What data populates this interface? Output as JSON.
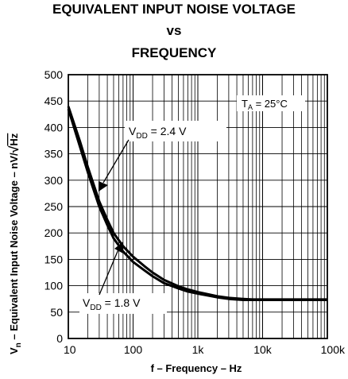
{
  "chart_data": {
    "type": "line",
    "title_lines": [
      "EQUIVALENT INPUT NOISE VOLTAGE",
      "vs",
      "FREQUENCY"
    ],
    "xlabel": "f – Frequency – Hz",
    "ylabel_parts": {
      "v": "V",
      "n": "n",
      "text": " – Equivalent Input Noise Voltage – nV/",
      "root": "Hz"
    },
    "x_scale": "log",
    "xlim": [
      10,
      100000
    ],
    "ylim": [
      0,
      500
    ],
    "x_ticks": [
      {
        "value": 10,
        "label": "10"
      },
      {
        "value": 100,
        "label": "100"
      },
      {
        "value": 1000,
        "label": "1k"
      },
      {
        "value": 10000,
        "label": "10k"
      },
      {
        "value": 100000,
        "label": "100k"
      }
    ],
    "y_ticks": [
      0,
      50,
      100,
      150,
      200,
      250,
      300,
      350,
      400,
      450,
      500
    ],
    "grid": true,
    "annotation": {
      "T": "T",
      "sub": "A",
      "rest": " = 25°C"
    },
    "series": [
      {
        "name_parts": {
          "V": "V",
          "sub": "DD",
          "rest": " = 2.4 V"
        },
        "x": [
          10,
          15,
          20,
          30,
          40,
          50,
          70,
          100,
          150,
          200,
          300,
          500,
          700,
          1000,
          2000,
          3000,
          5000,
          7000,
          10000,
          20000,
          50000,
          100000
        ],
        "y": [
          440,
          375,
          325,
          260,
          225,
          200,
          175,
          155,
          137,
          125,
          111,
          99,
          93,
          88,
          80,
          77,
          75,
          74,
          74,
          74,
          74,
          74
        ]
      },
      {
        "name_parts": {
          "V": "V",
          "sub": "DD",
          "rest": " = 1.8 V"
        },
        "x": [
          10,
          15,
          20,
          30,
          40,
          50,
          70,
          100,
          150,
          200,
          300,
          500,
          700,
          1000,
          2000,
          3000,
          5000,
          7000,
          10000,
          20000,
          50000,
          100000
        ],
        "y": [
          435,
          365,
          315,
          250,
          215,
          190,
          165,
          145,
          129,
          118,
          105,
          95,
          89,
          85,
          78,
          75,
          73,
          73,
          73,
          73,
          73,
          73
        ]
      }
    ]
  }
}
